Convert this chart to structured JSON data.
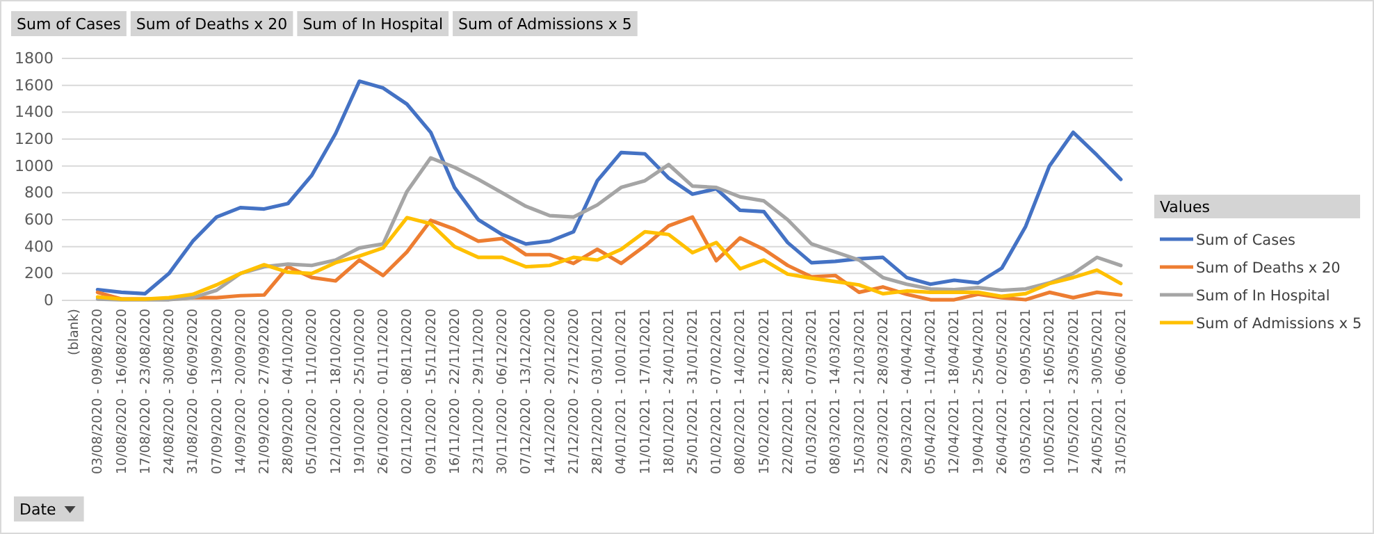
{
  "chart_data": {
    "type": "line",
    "categories": [
      "(blank)",
      "03/08/2020 - 09/08/2020",
      "10/08/2020 - 16/08/2020",
      "17/08/2020 - 23/08/2020",
      "24/08/2020 - 30/08/2020",
      "31/08/2020 - 06/09/2020",
      "07/09/2020 - 13/09/2020",
      "14/09/2020 - 20/09/2020",
      "21/09/2020 - 27/09/2020",
      "28/09/2020 - 04/10/2020",
      "05/10/2020 - 11/10/2020",
      "12/10/2020 - 18/10/2020",
      "19/10/2020 - 25/10/2020",
      "26/10/2020 - 01/11/2020",
      "02/11/2020 - 08/11/2020",
      "09/11/2020 - 15/11/2020",
      "16/11/2020 - 22/11/2020",
      "23/11/2020 - 29/11/2020",
      "30/11/2020 - 06/12/2020",
      "07/12/2020 - 13/12/2020",
      "14/12/2020 - 20/12/2020",
      "21/12/2020 - 27/12/2020",
      "28/12/2020 - 03/01/2021",
      "04/01/2021 - 10/01/2021",
      "11/01/2021 - 17/01/2021",
      "18/01/2021 - 24/01/2021",
      "25/01/2021 - 31/01/2021",
      "01/02/2021 - 07/02/2021",
      "08/02/2021 - 14/02/2021",
      "15/02/2021 - 21/02/2021",
      "22/02/2021 - 28/02/2021",
      "01/03/2021 - 07/03/2021",
      "08/03/2021 - 14/03/2021",
      "15/03/2021 - 21/03/2021",
      "22/03/2021 - 28/03/2021",
      "29/03/2021 - 04/04/2021",
      "05/04/2021 - 11/04/2021",
      "12/04/2021 - 18/04/2021",
      "19/04/2021 - 25/04/2021",
      "26/04/2021 - 02/05/2021",
      "03/05/2021 - 09/05/2021",
      "10/05/2021 - 16/05/2021",
      "17/05/2021 - 23/05/2021",
      "24/05/2021 - 30/05/2021",
      "31/05/2021 - 06/06/2021"
    ],
    "series": [
      {
        "name": "Sum of Cases",
        "color": "#4472c4",
        "values": [
          null,
          80,
          60,
          50,
          200,
          440,
          620,
          690,
          680,
          720,
          930,
          1240,
          1630,
          1580,
          1460,
          1250,
          840,
          600,
          490,
          420,
          440,
          510,
          890,
          1100,
          1090,
          910,
          790,
          830,
          670,
          660,
          430,
          280,
          290,
          310,
          320,
          170,
          120,
          150,
          130,
          240,
          550,
          1000,
          1250,
          1080,
          900
        ]
      },
      {
        "name": "Sum of Deaths x 20",
        "color": "#ed7d31",
        "values": [
          null,
          60,
          10,
          10,
          10,
          20,
          20,
          35,
          40,
          250,
          170,
          145,
          300,
          185,
          360,
          595,
          530,
          440,
          460,
          340,
          340,
          275,
          380,
          275,
          405,
          555,
          620,
          295,
          465,
          380,
          260,
          175,
          185,
          60,
          100,
          45,
          5,
          5,
          45,
          20,
          5,
          60,
          20,
          60,
          40
        ]
      },
      {
        "name": "Sum of In Hospital",
        "color": "#a5a5a5",
        "values": [
          null,
          10,
          5,
          5,
          5,
          20,
          75,
          200,
          250,
          270,
          260,
          300,
          390,
          420,
          810,
          1060,
          990,
          900,
          800,
          700,
          630,
          620,
          710,
          840,
          890,
          1010,
          850,
          840,
          770,
          740,
          600,
          420,
          360,
          300,
          170,
          120,
          85,
          80,
          95,
          75,
          85,
          130,
          200,
          320,
          260
        ]
      },
      {
        "name": "Sum of Admissions x 5",
        "color": "#ffc000",
        "values": [
          null,
          25,
          10,
          10,
          20,
          45,
          115,
          200,
          265,
          210,
          200,
          280,
          330,
          390,
          615,
          570,
          400,
          320,
          320,
          250,
          260,
          320,
          300,
          380,
          510,
          490,
          355,
          430,
          235,
          300,
          195,
          165,
          140,
          115,
          50,
          70,
          60,
          60,
          60,
          30,
          50,
          125,
          170,
          225,
          125
        ]
      }
    ],
    "ylim": [
      0,
      1800
    ],
    "yticks": [
      0,
      200,
      400,
      600,
      800,
      1000,
      1200,
      1400,
      1600,
      1800
    ],
    "grid": "y",
    "legend": "right",
    "legend_title": "Values",
    "marker": "none",
    "line_style": "solid",
    "annotations": [
      "Sum of Cases",
      "Sum of Deaths x 20",
      "Sum of In Hospital",
      "Sum of Admissions x 5",
      "Date"
    ]
  }
}
